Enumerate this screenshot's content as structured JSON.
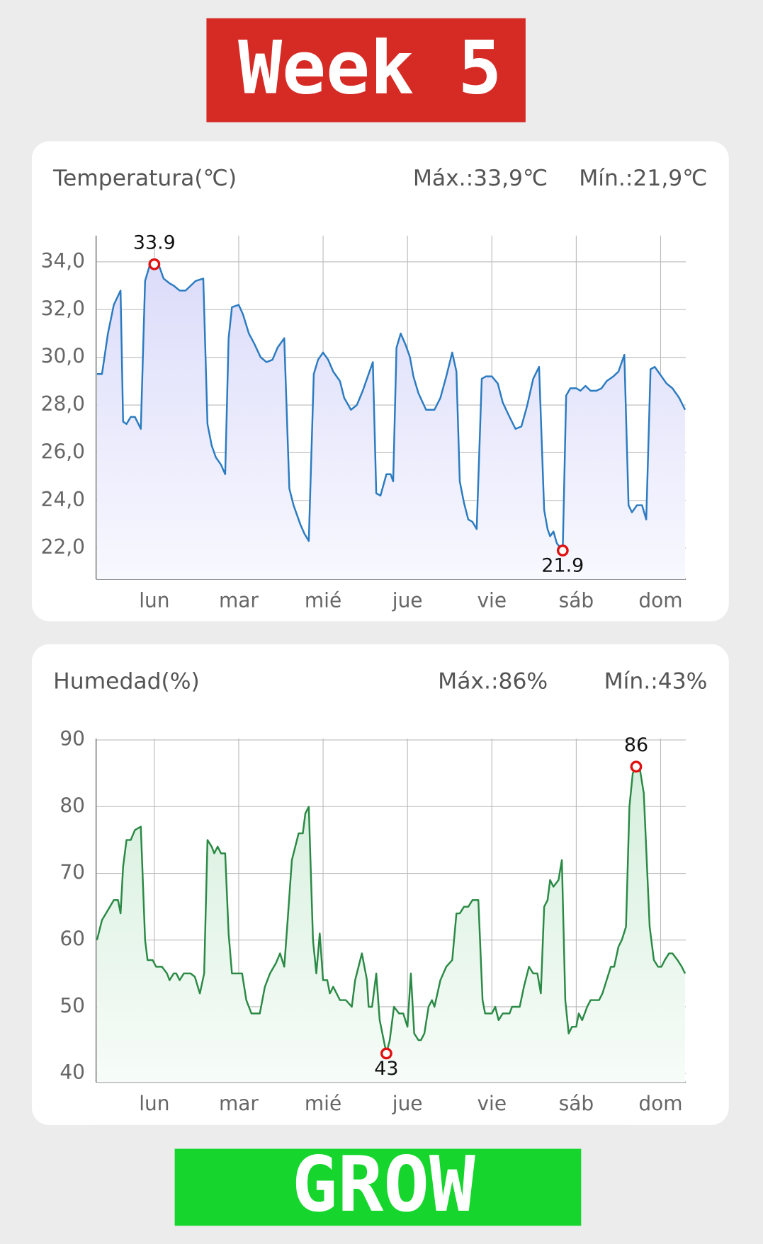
{
  "banner_top": "Week 5",
  "banner_bottom": "GROW",
  "chart_data": [
    {
      "type": "line",
      "title": "Temperatura(℃)",
      "max_text": "Máx.:33,9℃",
      "min_text": "Mín.:21,9℃",
      "xlim": [
        0.31,
        7.3
      ],
      "xticks": [
        {
          "value": 1,
          "label": "lun"
        },
        {
          "value": 2,
          "label": "mar"
        },
        {
          "value": 3,
          "label": "mié"
        },
        {
          "value": 4,
          "label": "jue"
        },
        {
          "value": 5,
          "label": "vie"
        },
        {
          "value": 6,
          "label": "sáb"
        },
        {
          "value": 7,
          "label": "dom"
        }
      ],
      "ylim": [
        20.7,
        35.1
      ],
      "yticks": [
        {
          "value": 22,
          "label": "22,0"
        },
        {
          "value": 24,
          "label": "24,0"
        },
        {
          "value": 26,
          "label": "26,0"
        },
        {
          "value": 28,
          "label": "28,0"
        },
        {
          "value": 30,
          "label": "30,0"
        },
        {
          "value": 32,
          "label": "32,0"
        },
        {
          "value": 34,
          "label": "34,0"
        }
      ],
      "grid": true,
      "series": [
        {
          "color": "#2b7bc0",
          "x": [
            0.32,
            0.38,
            0.45,
            0.52,
            0.6,
            0.63,
            0.67,
            0.72,
            0.77,
            0.84,
            0.89,
            0.94,
            1.0,
            1.06,
            1.11,
            1.18,
            1.23,
            1.3,
            1.37,
            1.43,
            1.49,
            1.58,
            1.63,
            1.68,
            1.73,
            1.79,
            1.84,
            1.88,
            1.92,
            2.0,
            2.05,
            2.12,
            2.18,
            2.26,
            2.33,
            2.4,
            2.46,
            2.54,
            2.6,
            2.65,
            2.73,
            2.78,
            2.83,
            2.89,
            2.94,
            3.0,
            3.06,
            3.12,
            3.2,
            3.25,
            3.33,
            3.4,
            3.47,
            3.54,
            3.59,
            3.63,
            3.68,
            3.75,
            3.8,
            3.83,
            3.87,
            3.92,
            3.98,
            4.03,
            4.07,
            4.13,
            4.22,
            4.32,
            4.39,
            4.46,
            4.53,
            4.58,
            4.62,
            4.67,
            4.72,
            4.77,
            4.82,
            4.88,
            4.93,
            5.0,
            5.07,
            5.13,
            5.21,
            5.28,
            5.35,
            5.42,
            5.49,
            5.56,
            5.62,
            5.66,
            5.69,
            5.73,
            5.77,
            5.84,
            5.88,
            5.93,
            6.0,
            6.05,
            6.11,
            6.17,
            6.24,
            6.3,
            6.36,
            6.44,
            6.5,
            6.57,
            6.62,
            6.66,
            6.72,
            6.78,
            6.83,
            6.88,
            6.93,
            7.01,
            7.07,
            7.14,
            7.22,
            7.29
          ],
          "values": [
            29.3,
            29.3,
            31,
            32.2,
            32.8,
            27.3,
            27.2,
            27.5,
            27.5,
            27,
            33.2,
            33.8,
            33.9,
            33.8,
            33.3,
            33.1,
            33.0,
            32.8,
            32.8,
            33.0,
            33.2,
            33.3,
            27.2,
            26.3,
            25.8,
            25.5,
            25.1,
            30.8,
            32.1,
            32.2,
            31.8,
            31.0,
            30.6,
            30.0,
            29.8,
            29.9,
            30.4,
            30.8,
            24.5,
            23.8,
            23.0,
            22.6,
            22.3,
            29.3,
            29.9,
            30.2,
            29.9,
            29.4,
            29.0,
            28.3,
            27.8,
            28.0,
            28.6,
            29.3,
            29.8,
            24.3,
            24.2,
            25.1,
            25.1,
            24.8,
            30.4,
            31.0,
            30.5,
            30.0,
            29.2,
            28.5,
            27.8,
            27.8,
            28.3,
            29.2,
            30.2,
            29.4,
            24.8,
            23.9,
            23.2,
            23.1,
            22.8,
            29.1,
            29.2,
            29.2,
            28.9,
            28.1,
            27.5,
            27.0,
            27.1,
            28.0,
            29.1,
            29.6,
            23.6,
            22.8,
            22.5,
            22.7,
            22.2,
            21.9,
            28.4,
            28.7,
            28.7,
            28.6,
            28.8,
            28.6,
            28.6,
            28.7,
            29.0,
            29.2,
            29.4,
            30.1,
            23.8,
            23.5,
            23.8,
            23.8,
            23.2,
            29.5,
            29.6,
            29.2,
            28.9,
            28.7,
            28.3,
            27.8
          ]
        }
      ],
      "markers": [
        {
          "x": 1.0,
          "value": 33.9
        },
        {
          "x": 5.84,
          "value": 21.9
        }
      ]
    },
    {
      "type": "line",
      "title": "Humedad(%)",
      "max_text": "Máx.:86%",
      "min_text": "Mín.:43%",
      "xlim": [
        0.31,
        7.3
      ],
      "xticks": [
        {
          "value": 1,
          "label": "lun"
        },
        {
          "value": 2,
          "label": "mar"
        },
        {
          "value": 3,
          "label": "mié"
        },
        {
          "value": 4,
          "label": "jue"
        },
        {
          "value": 5,
          "label": "vie"
        },
        {
          "value": 6,
          "label": "sáb"
        },
        {
          "value": 7,
          "label": "dom"
        }
      ],
      "ylim": [
        38.7,
        90.2
      ],
      "yticks": [
        40,
        50,
        60,
        70,
        80,
        90
      ],
      "grid": true,
      "series": [
        {
          "color": "#2a8a45",
          "x": [
            0.32,
            0.38,
            0.45,
            0.52,
            0.57,
            0.6,
            0.63,
            0.67,
            0.72,
            0.77,
            0.84,
            0.89,
            0.92,
            0.98,
            1.02,
            1.09,
            1.15,
            1.18,
            1.23,
            1.26,
            1.3,
            1.35,
            1.43,
            1.48,
            1.54,
            1.59,
            1.63,
            1.68,
            1.71,
            1.75,
            1.79,
            1.84,
            1.88,
            1.92,
            2.0,
            2.04,
            2.09,
            2.15,
            2.25,
            2.31,
            2.37,
            2.44,
            2.49,
            2.54,
            2.58,
            2.63,
            2.71,
            2.76,
            2.79,
            2.83,
            2.88,
            2.92,
            2.96,
            3.0,
            3.05,
            3.08,
            3.12,
            3.2,
            3.27,
            3.34,
            3.38,
            3.46,
            3.52,
            3.54,
            3.58,
            3.63,
            3.67,
            3.75,
            3.79,
            3.84,
            3.9,
            3.95,
            4.0,
            4.04,
            4.08,
            4.13,
            4.16,
            4.2,
            4.25,
            4.29,
            4.32,
            4.39,
            4.46,
            4.53,
            4.58,
            4.62,
            4.67,
            4.72,
            4.77,
            4.84,
            4.89,
            4.92,
            5.0,
            5.04,
            5.08,
            5.13,
            5.21,
            5.24,
            5.33,
            5.38,
            5.44,
            5.49,
            5.54,
            5.58,
            5.62,
            5.66,
            5.69,
            5.73,
            5.79,
            5.83,
            5.87,
            5.91,
            5.95,
            6.0,
            6.03,
            6.07,
            6.13,
            6.17,
            6.27,
            6.31,
            6.36,
            6.41,
            6.45,
            6.5,
            6.54,
            6.59,
            6.63,
            6.67,
            6.71,
            6.75,
            6.8,
            6.87,
            6.92,
            6.97,
            7.01,
            7.05,
            7.1,
            7.14,
            7.2,
            7.25,
            7.29
          ],
          "values": [
            60,
            63,
            64.5,
            66,
            66,
            64,
            71,
            75,
            75,
            76.5,
            77,
            60,
            57,
            57,
            56,
            56,
            55,
            54,
            55,
            55,
            54,
            55,
            55,
            54.5,
            52,
            55,
            75,
            74,
            73,
            74,
            73,
            73,
            61,
            55,
            55,
            55,
            51,
            49,
            49,
            53,
            55,
            56.5,
            58,
            56,
            63,
            72,
            76,
            76,
            79,
            80,
            60,
            55,
            61,
            54,
            54,
            52,
            53,
            51,
            51,
            50,
            54,
            58,
            54,
            50,
            50,
            55,
            48,
            43,
            45,
            50,
            49,
            49,
            47,
            55,
            46,
            45,
            45,
            46,
            50,
            51,
            50,
            54,
            56,
            57,
            64,
            64,
            65,
            65,
            66,
            66,
            51,
            49,
            49,
            50,
            48,
            49,
            49,
            50,
            50,
            53,
            56,
            55,
            55,
            52,
            65,
            66,
            69,
            68,
            69,
            72,
            51,
            46,
            47,
            47,
            49,
            48,
            50,
            51,
            51,
            52,
            54,
            56,
            56,
            59,
            60,
            62,
            80,
            85,
            86,
            86,
            82,
            62,
            57,
            56,
            56,
            57,
            58,
            58,
            57,
            56,
            55
          ]
        }
      ],
      "markers": [
        {
          "x": 3.75,
          "value": 43
        },
        {
          "x": 6.71,
          "value": 86
        }
      ]
    }
  ]
}
